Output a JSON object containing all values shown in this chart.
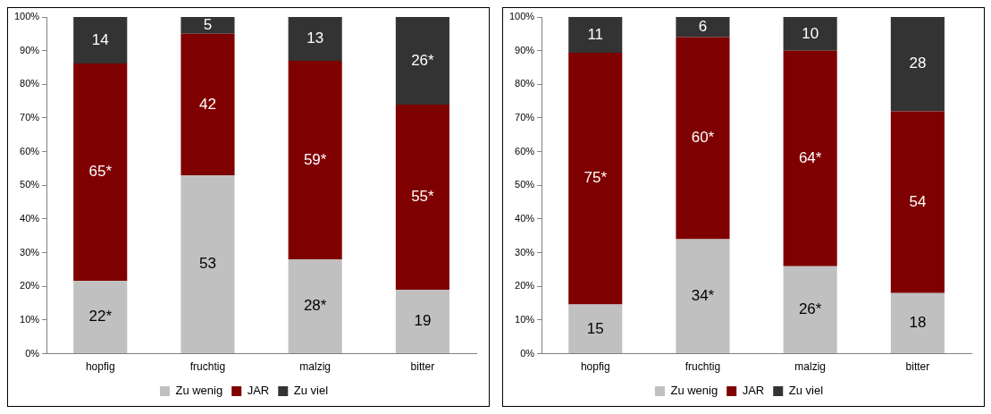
{
  "chart_data": [
    {
      "type": "bar",
      "stacked": true,
      "categories": [
        "hopfig",
        "fruchtig",
        "malzig",
        "bitter"
      ],
      "ylim": [
        0,
        100
      ],
      "yticks": [
        {
          "value": 0,
          "label": "0%"
        },
        {
          "value": 10,
          "label": "10%"
        },
        {
          "value": 20,
          "label": "20%"
        },
        {
          "value": 30,
          "label": "30%"
        },
        {
          "value": 40,
          "label": "40%"
        },
        {
          "value": 50,
          "label": "50%"
        },
        {
          "value": 60,
          "label": "60%"
        },
        {
          "value": 70,
          "label": "70%"
        },
        {
          "value": 80,
          "label": "80%"
        },
        {
          "value": 90,
          "label": "90%"
        },
        {
          "value": 100,
          "label": "100%"
        }
      ],
      "grid": false,
      "legend": "bottom",
      "series": [
        {
          "name": "Zu wenig",
          "color": "#c0c0c0",
          "values": [
            21.6,
            53,
            28,
            19
          ],
          "value_labels": [
            "22*",
            "53",
            "28*",
            "19"
          ]
        },
        {
          "name": "JAR",
          "color": "#7f0000",
          "values": [
            64.6,
            42,
            59,
            55
          ],
          "value_labels": [
            "65*",
            "42",
            "59*",
            "55*"
          ]
        },
        {
          "name": "Zu viel",
          "color": "#333333",
          "values": [
            13.8,
            5,
            13,
            26
          ],
          "value_labels": [
            "14",
            "5",
            "13",
            "26*"
          ]
        }
      ]
    },
    {
      "type": "bar",
      "stacked": true,
      "categories": [
        "hopfig",
        "fruchtig",
        "malzig",
        "bitter"
      ],
      "ylim": [
        0,
        100
      ],
      "yticks": [
        {
          "value": 0,
          "label": "0%"
        },
        {
          "value": 10,
          "label": "10%"
        },
        {
          "value": 20,
          "label": "20%"
        },
        {
          "value": 30,
          "label": "30%"
        },
        {
          "value": 40,
          "label": "40%"
        },
        {
          "value": 50,
          "label": "50%"
        },
        {
          "value": 60,
          "label": "60%"
        },
        {
          "value": 70,
          "label": "70%"
        },
        {
          "value": 80,
          "label": "80%"
        },
        {
          "value": 90,
          "label": "90%"
        },
        {
          "value": 100,
          "label": "100%"
        }
      ],
      "grid": false,
      "legend": "bottom",
      "series": [
        {
          "name": "Zu wenig",
          "color": "#c0c0c0",
          "values": [
            14.6,
            34,
            26,
            18
          ],
          "value_labels": [
            "15",
            "34*",
            "26*",
            "18"
          ]
        },
        {
          "name": "JAR",
          "color": "#7f0000",
          "values": [
            74.8,
            60,
            64,
            54
          ],
          "value_labels": [
            "75*",
            "60*",
            "64*",
            "54"
          ]
        },
        {
          "name": "Zu viel",
          "color": "#333333",
          "values": [
            10.6,
            6,
            10,
            28
          ],
          "value_labels": [
            "11",
            "6",
            "10",
            "28"
          ]
        }
      ]
    }
  ]
}
